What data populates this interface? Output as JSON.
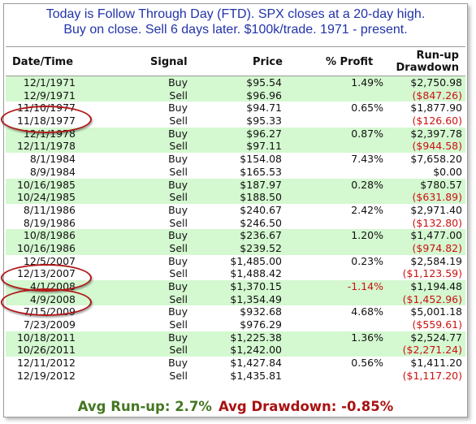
{
  "header": {
    "line1": "Today is  Follow Through Day (FTD). SPX closes at a 20-day high.",
    "line2": "Buy on close. Sell 6 days later. $100k/trade. 1971 - present."
  },
  "columns": {
    "date": "Date/Time",
    "signal": "Signal",
    "price": "Price",
    "profit": "% Profit",
    "runup_l1": "Run-up",
    "runup_l2": "Drawdown"
  },
  "colors": {
    "header_text": "#2233aa",
    "green_row": "#d4f8d0",
    "negative": "#cc1111",
    "runup_summary": "#447722",
    "drawdown_summary": "#aa1111",
    "circle": "#b01818"
  },
  "rows": [
    {
      "date": "12/1/1971",
      "signal": "Buy",
      "price": "$95.54",
      "profit": "1.49%",
      "profit_neg": false,
      "dd": "$2,750.98",
      "dd_neg": false,
      "green": true
    },
    {
      "date": "12/9/1971",
      "signal": "Sell",
      "price": "$96.96",
      "profit": "",
      "profit_neg": false,
      "dd": "($847.26)",
      "dd_neg": true,
      "green": true
    },
    {
      "date": "11/10/1977",
      "signal": "Buy",
      "price": "$94.71",
      "profit": "0.65%",
      "profit_neg": false,
      "dd": "$1,877.90",
      "dd_neg": false,
      "green": false
    },
    {
      "date": "11/18/1977",
      "signal": "Sell",
      "price": "$95.33",
      "profit": "",
      "profit_neg": false,
      "dd": "($126.60)",
      "dd_neg": true,
      "green": false
    },
    {
      "date": "12/1/1978",
      "signal": "Buy",
      "price": "$96.27",
      "profit": "0.87%",
      "profit_neg": false,
      "dd": "$2,397.78",
      "dd_neg": false,
      "green": true
    },
    {
      "date": "12/11/1978",
      "signal": "Sell",
      "price": "$97.11",
      "profit": "",
      "profit_neg": false,
      "dd": "($944.58)",
      "dd_neg": true,
      "green": true
    },
    {
      "date": "8/1/1984",
      "signal": "Buy",
      "price": "$154.08",
      "profit": "7.43%",
      "profit_neg": false,
      "dd": "$7,658.20",
      "dd_neg": false,
      "green": false
    },
    {
      "date": "8/9/1984",
      "signal": "Sell",
      "price": "$165.53",
      "profit": "",
      "profit_neg": false,
      "dd": "$0.00",
      "dd_neg": false,
      "green": false
    },
    {
      "date": "10/16/1985",
      "signal": "Buy",
      "price": "$187.97",
      "profit": "0.28%",
      "profit_neg": false,
      "dd": "$780.57",
      "dd_neg": false,
      "green": true
    },
    {
      "date": "10/24/1985",
      "signal": "Sell",
      "price": "$188.50",
      "profit": "",
      "profit_neg": false,
      "dd": "($631.89)",
      "dd_neg": true,
      "green": true
    },
    {
      "date": "8/11/1986",
      "signal": "Buy",
      "price": "$240.67",
      "profit": "2.42%",
      "profit_neg": false,
      "dd": "$2,971.40",
      "dd_neg": false,
      "green": false
    },
    {
      "date": "8/19/1986",
      "signal": "Sell",
      "price": "$246.50",
      "profit": "",
      "profit_neg": false,
      "dd": "($132.80)",
      "dd_neg": true,
      "green": false
    },
    {
      "date": "10/8/1986",
      "signal": "Buy",
      "price": "$236.67",
      "profit": "1.20%",
      "profit_neg": false,
      "dd": "$1,477.00",
      "dd_neg": false,
      "green": true
    },
    {
      "date": "10/16/1986",
      "signal": "Sell",
      "price": "$239.52",
      "profit": "",
      "profit_neg": false,
      "dd": "($974.82)",
      "dd_neg": true,
      "green": true
    },
    {
      "date": "12/5/2007",
      "signal": "Buy",
      "price": "$1,485.00",
      "profit": "0.23%",
      "profit_neg": false,
      "dd": "$2,584.19",
      "dd_neg": false,
      "green": false
    },
    {
      "date": "12/13/2007",
      "signal": "Sell",
      "price": "$1,488.42",
      "profit": "",
      "profit_neg": false,
      "dd": "($1,123.59)",
      "dd_neg": true,
      "green": false
    },
    {
      "date": "4/1/2008",
      "signal": "Buy",
      "price": "$1,370.15",
      "profit": "-1.14%",
      "profit_neg": true,
      "dd": "$1,194.48",
      "dd_neg": false,
      "green": true
    },
    {
      "date": "4/9/2008",
      "signal": "Sell",
      "price": "$1,354.49",
      "profit": "",
      "profit_neg": false,
      "dd": "($1,452.96)",
      "dd_neg": true,
      "green": true
    },
    {
      "date": "7/15/2009",
      "signal": "Buy",
      "price": "$932.68",
      "profit": "4.68%",
      "profit_neg": false,
      "dd": "$5,001.18",
      "dd_neg": false,
      "green": false
    },
    {
      "date": "7/23/2009",
      "signal": "Sell",
      "price": "$976.29",
      "profit": "",
      "profit_neg": false,
      "dd": "($559.61)",
      "dd_neg": true,
      "green": false
    },
    {
      "date": "10/18/2011",
      "signal": "Buy",
      "price": "$1,225.38",
      "profit": "1.36%",
      "profit_neg": false,
      "dd": "$2,524.77",
      "dd_neg": false,
      "green": true
    },
    {
      "date": "10/26/2011",
      "signal": "Sell",
      "price": "$1,242.00",
      "profit": "",
      "profit_neg": false,
      "dd": "($2,271.24)",
      "dd_neg": true,
      "green": true
    },
    {
      "date": "12/11/2012",
      "signal": "Buy",
      "price": "$1,427.84",
      "profit": "0.56%",
      "profit_neg": false,
      "dd": "$1,411.20",
      "dd_neg": false,
      "green": false
    },
    {
      "date": "12/19/2012",
      "signal": "Sell",
      "price": "$1,435.81",
      "profit": "",
      "profit_neg": false,
      "dd": "($1,117.20)",
      "dd_neg": true,
      "green": false
    }
  ],
  "summary": {
    "runup": "Avg Run-up: 2.7%",
    "drawdown": "Avg Drawdown: -0.85%"
  }
}
